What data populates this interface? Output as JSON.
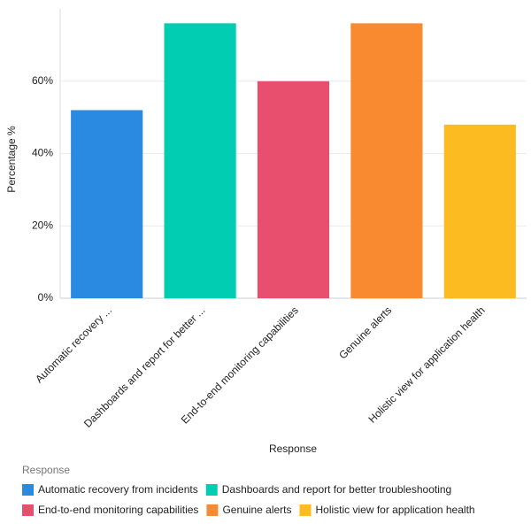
{
  "chart_data": {
    "type": "bar",
    "categories": [
      "Automatic recovery ...",
      "Dashboards and report for better ...",
      "End-to-end monitoring capabilities",
      "Genuine alerts",
      "Holistic view for application health"
    ],
    "values": [
      52,
      76,
      60,
      76,
      48
    ],
    "colors": [
      "#2a8ae2",
      "#00cdb1",
      "#e84f6e",
      "#f98a2f",
      "#fdbb22"
    ],
    "x_label": "Response",
    "y_label": "Percentage %",
    "ylim": [
      0,
      80
    ],
    "yticks": [
      {
        "value": 0,
        "label": "0%"
      },
      {
        "value": 20,
        "label": "20%"
      },
      {
        "value": 40,
        "label": "40%"
      },
      {
        "value": 60,
        "label": "60%"
      }
    ],
    "grid": true,
    "legend": {
      "title": "Response",
      "labels": [
        "Automatic recovery from incidents",
        "Dashboards and report for better troubleshooting",
        "End-to-end monitoring capabilities",
        "Genuine alerts",
        "Holistic view for application health"
      ]
    }
  }
}
